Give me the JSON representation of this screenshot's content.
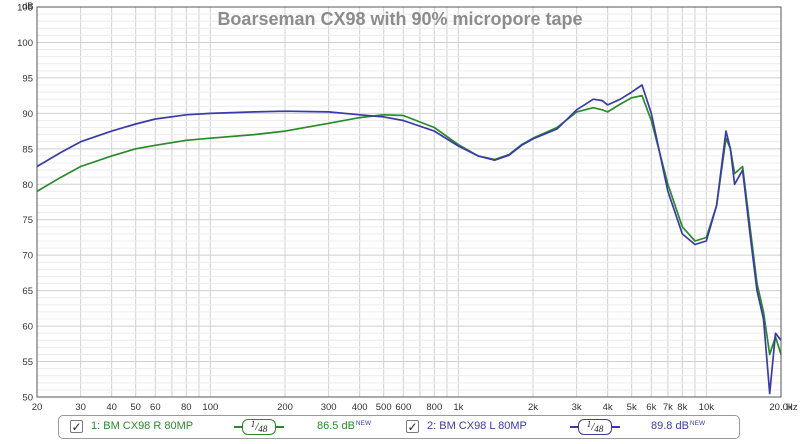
{
  "chart_data": {
    "type": "line",
    "title": "Boarseman CX98 with 90% micropore tape",
    "xlabel": "Hz",
    "ylabel": "dB",
    "x_scale": "log",
    "xlim": [
      20,
      20000
    ],
    "ylim": [
      50,
      105
    ],
    "grid": true,
    "y_ticks": [
      50,
      55,
      60,
      65,
      70,
      75,
      80,
      85,
      90,
      95,
      100,
      105
    ],
    "x_ticks": [
      {
        "value": 20,
        "label": "20"
      },
      {
        "value": 30,
        "label": "30"
      },
      {
        "value": 40,
        "label": "40"
      },
      {
        "value": 50,
        "label": "50"
      },
      {
        "value": 60,
        "label": "60"
      },
      {
        "value": 80,
        "label": "80"
      },
      {
        "value": 100,
        "label": "100"
      },
      {
        "value": 200,
        "label": "200"
      },
      {
        "value": 300,
        "label": "300"
      },
      {
        "value": 400,
        "label": "400"
      },
      {
        "value": 500,
        "label": "500"
      },
      {
        "value": 600,
        "label": "600"
      },
      {
        "value": 800,
        "label": "800"
      },
      {
        "value": 1000,
        "label": "1k"
      },
      {
        "value": 2000,
        "label": "2k"
      },
      {
        "value": 3000,
        "label": "3k"
      },
      {
        "value": 4000,
        "label": "4k"
      },
      {
        "value": 5000,
        "label": "5k"
      },
      {
        "value": 6000,
        "label": "6k"
      },
      {
        "value": 7000,
        "label": "7k"
      },
      {
        "value": 8000,
        "label": "8k"
      },
      {
        "value": 10000,
        "label": "10k"
      },
      {
        "value": 20000,
        "label": "20.0k"
      }
    ],
    "series": [
      {
        "name": "1: BM CX98 R 80MP",
        "color": "#2a8a2a",
        "points": [
          [
            20,
            79
          ],
          [
            25,
            81
          ],
          [
            30,
            82.5
          ],
          [
            40,
            84
          ],
          [
            50,
            85
          ],
          [
            60,
            85.5
          ],
          [
            80,
            86.2
          ],
          [
            100,
            86.5
          ],
          [
            150,
            87
          ],
          [
            200,
            87.5
          ],
          [
            300,
            88.6
          ],
          [
            400,
            89.4
          ],
          [
            500,
            89.8
          ],
          [
            600,
            89.7
          ],
          [
            800,
            88
          ],
          [
            1000,
            85.6
          ],
          [
            1200,
            84
          ],
          [
            1400,
            83.5
          ],
          [
            1600,
            84.2
          ],
          [
            1800,
            85.6
          ],
          [
            2000,
            86.5
          ],
          [
            2500,
            88
          ],
          [
            3000,
            90.2
          ],
          [
            3500,
            90.8
          ],
          [
            3800,
            90.5
          ],
          [
            4000,
            90.2
          ],
          [
            4500,
            91.3
          ],
          [
            5000,
            92.2
          ],
          [
            5500,
            92.5
          ],
          [
            6000,
            89
          ],
          [
            7000,
            80
          ],
          [
            8000,
            74
          ],
          [
            9000,
            72
          ],
          [
            10000,
            72.5
          ],
          [
            11000,
            77
          ],
          [
            12000,
            86.5
          ],
          [
            12500,
            85
          ],
          [
            13000,
            81.5
          ],
          [
            14000,
            82.5
          ],
          [
            15000,
            74
          ],
          [
            16000,
            66
          ],
          [
            17000,
            62
          ],
          [
            18000,
            56
          ],
          [
            19000,
            58.5
          ],
          [
            20000,
            56
          ]
        ]
      },
      {
        "name": "2: BM CX98 L 80MP",
        "color": "#3a3aa8",
        "points": [
          [
            20,
            82.5
          ],
          [
            25,
            84.5
          ],
          [
            30,
            86
          ],
          [
            40,
            87.5
          ],
          [
            50,
            88.5
          ],
          [
            60,
            89.2
          ],
          [
            80,
            89.8
          ],
          [
            100,
            90
          ],
          [
            150,
            90.2
          ],
          [
            200,
            90.3
          ],
          [
            300,
            90.2
          ],
          [
            400,
            89.8
          ],
          [
            500,
            89.5
          ],
          [
            600,
            89
          ],
          [
            800,
            87.5
          ],
          [
            1000,
            85.4
          ],
          [
            1200,
            84
          ],
          [
            1400,
            83.4
          ],
          [
            1600,
            84.1
          ],
          [
            1800,
            85.5
          ],
          [
            2000,
            86.4
          ],
          [
            2500,
            87.8
          ],
          [
            3000,
            90.5
          ],
          [
            3500,
            92
          ],
          [
            3800,
            91.8
          ],
          [
            4000,
            91.2
          ],
          [
            4500,
            92
          ],
          [
            5000,
            93
          ],
          [
            5500,
            94
          ],
          [
            6000,
            90
          ],
          [
            7000,
            79
          ],
          [
            8000,
            73
          ],
          [
            9000,
            71.5
          ],
          [
            10000,
            72
          ],
          [
            11000,
            77
          ],
          [
            12000,
            87.5
          ],
          [
            12500,
            85
          ],
          [
            13000,
            80
          ],
          [
            14000,
            82
          ],
          [
            15000,
            73
          ],
          [
            16000,
            65
          ],
          [
            17000,
            61
          ],
          [
            18000,
            50.5
          ],
          [
            19000,
            59
          ],
          [
            20000,
            58
          ]
        ]
      }
    ]
  },
  "legend": [
    {
      "label": "1: BM CX98 R 80MP",
      "checked": "✓",
      "smoothing_num": "1",
      "smoothing_den": "48",
      "level": "86.5 dB",
      "badge": "NEW",
      "color": "#2a8a2a"
    },
    {
      "label": "2: BM CX98 L 80MP",
      "checked": "✓",
      "smoothing_num": "1",
      "smoothing_den": "48",
      "level": "89.8 dB",
      "badge": "NEW",
      "color": "#3a3aa8"
    }
  ]
}
